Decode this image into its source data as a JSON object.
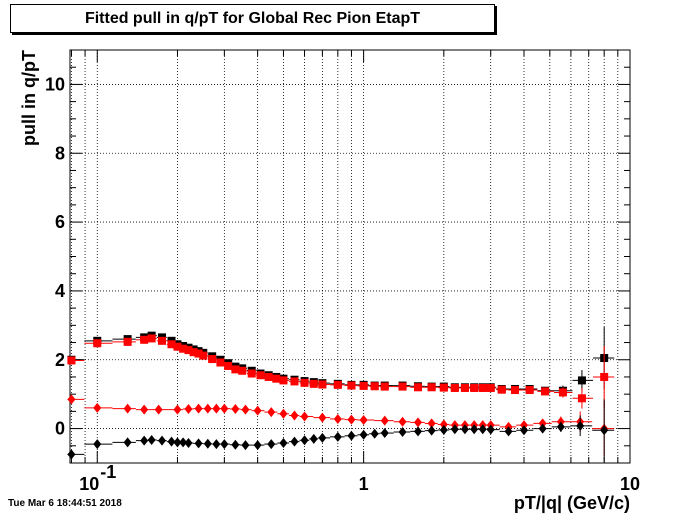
{
  "timestamp": "Tue Mar  6 18:44:51 2018",
  "chart_data": {
    "type": "scatter",
    "title": "Fitted pull in q/pT for Global Rec Pion EtapT",
    "xlabel": "pT/|q| (GeV/c)",
    "ylabel": "pull in q/pT",
    "x_scale": "log",
    "xlim": [
      0.079,
      10
    ],
    "ylim": [
      -1,
      11
    ],
    "grid": true,
    "x_ticks": [
      {
        "value": 0.1,
        "base": "10",
        "exp": "-1"
      },
      {
        "value": 1,
        "label": "1"
      },
      {
        "value": 10,
        "label": "10"
      }
    ],
    "y_ticks": [
      0,
      2,
      4,
      6,
      8,
      10
    ],
    "series": [
      {
        "color": "#000000",
        "marker": "square",
        "x": [
          0.08,
          0.1,
          0.13,
          0.15,
          0.16,
          0.175,
          0.19,
          0.2,
          0.21,
          0.22,
          0.23,
          0.24,
          0.25,
          0.27,
          0.29,
          0.31,
          0.33,
          0.35,
          0.38,
          0.41,
          0.44,
          0.47,
          0.5,
          0.55,
          0.6,
          0.65,
          0.7,
          0.8,
          0.9,
          1.0,
          1.1,
          1.2,
          1.4,
          1.6,
          1.8,
          2.0,
          2.2,
          2.4,
          2.6,
          2.8,
          3.0,
          3.3,
          3.7,
          4.2,
          4.8,
          5.6,
          6.6,
          8.0
        ],
        "y": [
          2.0,
          2.55,
          2.6,
          2.65,
          2.7,
          2.65,
          2.55,
          2.45,
          2.4,
          2.35,
          2.3,
          2.25,
          2.2,
          2.1,
          2.0,
          1.9,
          1.8,
          1.75,
          1.68,
          1.6,
          1.55,
          1.5,
          1.45,
          1.42,
          1.38,
          1.35,
          1.32,
          1.3,
          1.27,
          1.27,
          1.25,
          1.25,
          1.25,
          1.23,
          1.22,
          1.22,
          1.2,
          1.2,
          1.2,
          1.2,
          1.2,
          1.15,
          1.15,
          1.15,
          1.1,
          1.1,
          1.4,
          2.05
        ],
        "yerr": [
          0,
          0,
          0,
          0,
          0,
          0,
          0,
          0,
          0,
          0,
          0,
          0,
          0,
          0,
          0,
          0,
          0,
          0,
          0,
          0,
          0,
          0,
          0,
          0,
          0,
          0,
          0,
          0,
          0,
          0,
          0,
          0,
          0,
          0,
          0,
          0,
          0,
          0,
          0,
          0,
          0,
          0,
          0,
          0,
          0.1,
          0.15,
          0.3,
          0.9
        ]
      },
      {
        "color": "#ff0000",
        "marker": "square",
        "x": [
          0.08,
          0.1,
          0.13,
          0.15,
          0.16,
          0.175,
          0.19,
          0.2,
          0.21,
          0.22,
          0.23,
          0.24,
          0.25,
          0.27,
          0.29,
          0.31,
          0.33,
          0.35,
          0.38,
          0.41,
          0.44,
          0.47,
          0.5,
          0.55,
          0.6,
          0.65,
          0.7,
          0.8,
          0.9,
          1.0,
          1.1,
          1.2,
          1.4,
          1.6,
          1.8,
          2.0,
          2.2,
          2.4,
          2.6,
          2.8,
          3.0,
          3.3,
          3.7,
          4.2,
          4.8,
          5.6,
          6.6,
          8.0
        ],
        "y": [
          1.98,
          2.48,
          2.52,
          2.58,
          2.62,
          2.55,
          2.45,
          2.38,
          2.32,
          2.28,
          2.22,
          2.18,
          2.12,
          2.02,
          1.92,
          1.82,
          1.72,
          1.68,
          1.6,
          1.55,
          1.5,
          1.45,
          1.4,
          1.37,
          1.33,
          1.3,
          1.28,
          1.27,
          1.25,
          1.24,
          1.23,
          1.22,
          1.22,
          1.2,
          1.2,
          1.19,
          1.18,
          1.18,
          1.18,
          1.18,
          1.18,
          1.13,
          1.12,
          1.12,
          1.08,
          1.05,
          0.88,
          1.5
        ],
        "yerr": [
          0,
          0,
          0,
          0,
          0,
          0,
          0,
          0,
          0,
          0,
          0,
          0,
          0,
          0,
          0,
          0,
          0,
          0,
          0,
          0,
          0,
          0,
          0,
          0,
          0,
          0,
          0,
          0,
          0,
          0,
          0,
          0,
          0,
          0,
          0,
          0,
          0,
          0,
          0,
          0,
          0,
          0,
          0,
          0,
          0.1,
          0.15,
          0.3,
          0.9
        ]
      },
      {
        "color": "#ff0000",
        "marker": "diamond",
        "x": [
          0.08,
          0.1,
          0.13,
          0.15,
          0.17,
          0.2,
          0.22,
          0.24,
          0.26,
          0.28,
          0.3,
          0.33,
          0.36,
          0.4,
          0.45,
          0.5,
          0.55,
          0.6,
          0.7,
          0.8,
          0.9,
          1.0,
          1.2,
          1.4,
          1.6,
          1.8,
          2.0,
          2.2,
          2.4,
          2.6,
          2.8,
          3.0,
          3.5,
          4.0,
          4.7,
          5.5,
          6.5,
          8.0
        ],
        "y": [
          0.85,
          0.6,
          0.58,
          0.55,
          0.55,
          0.55,
          0.57,
          0.58,
          0.58,
          0.58,
          0.58,
          0.57,
          0.55,
          0.52,
          0.48,
          0.43,
          0.38,
          0.35,
          0.32,
          0.28,
          0.26,
          0.25,
          0.23,
          0.2,
          0.18,
          0.15,
          0.12,
          0.1,
          0.1,
          0.1,
          0.1,
          0.1,
          0.05,
          0.1,
          0.15,
          0.2,
          0.2,
          0.0
        ],
        "yerr": [
          0,
          0,
          0,
          0,
          0,
          0,
          0,
          0,
          0,
          0,
          0,
          0,
          0,
          0,
          0,
          0,
          0,
          0,
          0,
          0,
          0,
          0,
          0,
          0,
          0,
          0,
          0,
          0,
          0,
          0,
          0,
          0,
          0,
          0,
          0.1,
          0.15,
          0.3,
          0.8
        ]
      },
      {
        "color": "#000000",
        "marker": "diamond",
        "x": [
          0.08,
          0.1,
          0.13,
          0.15,
          0.16,
          0.175,
          0.19,
          0.2,
          0.21,
          0.22,
          0.24,
          0.26,
          0.28,
          0.3,
          0.33,
          0.36,
          0.4,
          0.45,
          0.5,
          0.55,
          0.6,
          0.65,
          0.7,
          0.8,
          0.9,
          1.0,
          1.1,
          1.2,
          1.4,
          1.6,
          1.8,
          2.0,
          2.2,
          2.4,
          2.6,
          2.8,
          3.0,
          3.5,
          4.0,
          4.7,
          5.5,
          6.5,
          8.0
        ],
        "y": [
          -0.75,
          -0.45,
          -0.4,
          -0.35,
          -0.33,
          -0.35,
          -0.38,
          -0.4,
          -0.4,
          -0.42,
          -0.43,
          -0.44,
          -0.45,
          -0.45,
          -0.47,
          -0.48,
          -0.48,
          -0.45,
          -0.42,
          -0.38,
          -0.34,
          -0.3,
          -0.27,
          -0.24,
          -0.21,
          -0.18,
          -0.15,
          -0.13,
          -0.1,
          -0.08,
          -0.06,
          -0.04,
          -0.02,
          -0.02,
          -0.02,
          -0.02,
          -0.03,
          -0.08,
          -0.05,
          0.0,
          0.05,
          0.08,
          -0.05
        ],
        "yerr": [
          0,
          0,
          0,
          0,
          0,
          0,
          0,
          0,
          0,
          0,
          0,
          0,
          0,
          0,
          0,
          0,
          0,
          0,
          0,
          0,
          0,
          0,
          0,
          0,
          0,
          0,
          0,
          0,
          0,
          0,
          0,
          0,
          0,
          0,
          0,
          0,
          0,
          0,
          0,
          0.08,
          0.15,
          0.3,
          0.9
        ]
      }
    ]
  }
}
